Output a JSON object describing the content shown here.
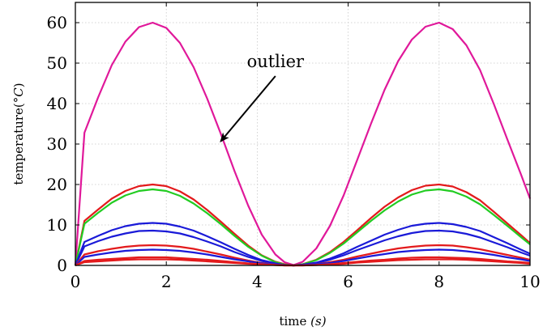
{
  "chart_data": {
    "type": "line",
    "title": "",
    "xlabel": "time (s)",
    "xlabel_parts": {
      "text": "time ",
      "var": "(s)"
    },
    "ylabel": "temperature(°C)",
    "ylabel_parts": {
      "text": "temperature(",
      "var": "°C",
      "close": ")"
    },
    "xlim": [
      0,
      10
    ],
    "ylim": [
      0,
      65
    ],
    "xticks": [
      0,
      2,
      4,
      6,
      8,
      10
    ],
    "yticks": [
      0,
      10,
      20,
      30,
      40,
      50,
      60
    ],
    "grid": true,
    "x": [
      0,
      0.2,
      0.5,
      0.8,
      1.1,
      1.4,
      1.7,
      2.0,
      2.3,
      2.6,
      2.9,
      3.2,
      3.5,
      3.8,
      4.1,
      4.4,
      4.6,
      4.8,
      5.0,
      5.3,
      5.6,
      5.9,
      6.2,
      6.5,
      6.8,
      7.1,
      7.4,
      7.7,
      8.0,
      8.3,
      8.6,
      8.9,
      9.2,
      9.5,
      9.8,
      10
    ],
    "series": [
      {
        "color": "#e0189a",
        "values": [
          0,
          32.8,
          41.5,
          49.5,
          55.3,
          58.9,
          60.0,
          58.7,
          55.0,
          49.0,
          41.2,
          32.5,
          23.3,
          14.8,
          7.6,
          2.7,
          0.8,
          0.1,
          0.9,
          4.2,
          9.8,
          17.3,
          26.1,
          35.0,
          43.4,
          50.5,
          55.8,
          59.0,
          60.0,
          58.4,
          54.4,
          48.3,
          40.0,
          31.2,
          22.5,
          16.5
        ]
      },
      {
        "color": "#e31a1c",
        "values": [
          0,
          11.0,
          13.8,
          16.5,
          18.4,
          19.6,
          20.0,
          19.6,
          18.3,
          16.3,
          13.7,
          10.8,
          7.8,
          4.9,
          2.5,
          0.9,
          0.3,
          0.0,
          0.3,
          1.4,
          3.3,
          5.8,
          8.7,
          11.7,
          14.5,
          16.8,
          18.6,
          19.7,
          20.0,
          19.5,
          18.1,
          16.1,
          13.3,
          10.4,
          7.5,
          5.5
        ]
      },
      {
        "color": "#22cc22",
        "values": [
          0,
          10.3,
          13.0,
          15.5,
          17.3,
          18.4,
          18.8,
          18.4,
          17.2,
          15.3,
          12.9,
          10.2,
          7.3,
          4.6,
          2.4,
          0.8,
          0.2,
          0.0,
          0.3,
          1.3,
          3.1,
          5.4,
          8.2,
          11.0,
          13.6,
          15.8,
          17.5,
          18.5,
          18.8,
          18.3,
          17.0,
          15.1,
          12.5,
          9.8,
          7.0,
          5.2
        ]
      },
      {
        "color": "#1a1ad8",
        "values": [
          0,
          5.8,
          7.3,
          8.7,
          9.7,
          10.3,
          10.5,
          10.3,
          9.6,
          8.6,
          7.2,
          5.7,
          4.1,
          2.6,
          1.3,
          0.5,
          0.1,
          0.0,
          0.2,
          0.7,
          1.7,
          3.0,
          4.6,
          6.1,
          7.6,
          8.8,
          9.8,
          10.3,
          10.5,
          10.2,
          9.5,
          8.5,
          7.0,
          5.5,
          3.9,
          2.9
        ]
      },
      {
        "color": "#1a1ad8",
        "values": [
          0,
          4.7,
          6.0,
          7.1,
          7.9,
          8.5,
          8.6,
          8.4,
          7.9,
          7.0,
          5.9,
          4.7,
          3.3,
          2.1,
          1.1,
          0.4,
          0.1,
          0.0,
          0.1,
          0.6,
          1.4,
          2.5,
          3.8,
          5.0,
          6.2,
          7.2,
          8.0,
          8.5,
          8.6,
          8.4,
          7.8,
          6.9,
          5.7,
          4.5,
          3.2,
          2.4
        ]
      },
      {
        "color": "#e31a1c",
        "values": [
          0,
          2.7,
          3.5,
          4.1,
          4.6,
          4.9,
          5.0,
          4.9,
          4.6,
          4.1,
          3.4,
          2.7,
          1.9,
          1.2,
          0.6,
          0.2,
          0.1,
          0.0,
          0.1,
          0.3,
          0.8,
          1.4,
          2.2,
          2.9,
          3.6,
          4.2,
          4.6,
          4.9,
          5.0,
          4.9,
          4.5,
          4.0,
          3.3,
          2.6,
          1.9,
          1.4
        ]
      },
      {
        "color": "#1a1ad8",
        "values": [
          0,
          2.1,
          2.7,
          3.2,
          3.6,
          3.8,
          3.9,
          3.8,
          3.6,
          3.2,
          2.7,
          2.1,
          1.5,
          1.0,
          0.5,
          0.2,
          0.1,
          0.0,
          0.1,
          0.3,
          0.6,
          1.1,
          1.7,
          2.3,
          2.8,
          3.3,
          3.6,
          3.8,
          3.9,
          3.8,
          3.5,
          3.1,
          2.6,
          2.0,
          1.5,
          1.1
        ]
      },
      {
        "color": "#e31a1c",
        "values": [
          0,
          1.1,
          1.4,
          1.6,
          1.8,
          2.0,
          2.0,
          2.0,
          1.8,
          1.6,
          1.4,
          1.1,
          0.8,
          0.5,
          0.3,
          0.1,
          0.0,
          0.0,
          0.0,
          0.1,
          0.3,
          0.6,
          0.9,
          1.2,
          1.4,
          1.7,
          1.9,
          2.0,
          2.0,
          1.9,
          1.8,
          1.6,
          1.3,
          1.0,
          0.8,
          0.6
        ]
      },
      {
        "color": "#e31a1c",
        "values": [
          0,
          0.8,
          1.0,
          1.2,
          1.4,
          1.5,
          1.5,
          1.5,
          1.4,
          1.2,
          1.0,
          0.8,
          0.6,
          0.4,
          0.2,
          0.1,
          0.0,
          0.0,
          0.0,
          0.1,
          0.2,
          0.4,
          0.7,
          0.9,
          1.1,
          1.3,
          1.4,
          1.5,
          1.5,
          1.5,
          1.4,
          1.2,
          1.0,
          0.8,
          0.6,
          0.4
        ]
      }
    ],
    "annotations": [
      {
        "text": "outlier",
        "x": 4.4,
        "y": 49,
        "arrow_to": [
          3.2,
          30.7
        ]
      }
    ]
  }
}
